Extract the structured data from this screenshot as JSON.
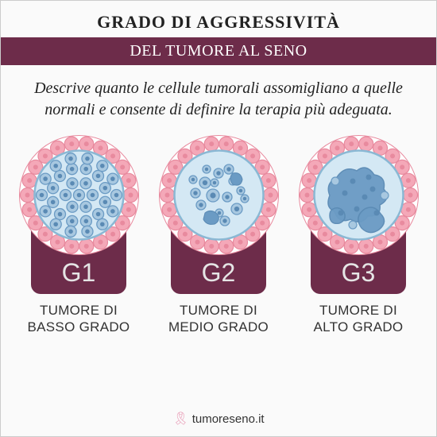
{
  "title_top": "GRADO DI AGGRESSIVITÀ",
  "title_band": "DEL TUMORE AL SENO",
  "description": "Descrive quanto le cellule tumorali assomigliano a quelle normali e consente di definire la terapia più adeguata.",
  "grades": [
    {
      "code": "G1",
      "line1": "TUMORE DI",
      "line2": "BASSO GRADO"
    },
    {
      "code": "G2",
      "line1": "TUMORE DI",
      "line2": "MEDIO GRADO"
    },
    {
      "code": "G3",
      "line1": "TUMORE DI",
      "line2": "ALTO GRADO"
    }
  ],
  "footer": "tumoreseno.it",
  "colors": {
    "band": "#6d2c4a",
    "outer_ring": "#f4a8b8",
    "outer_ring_dark": "#e88a9e",
    "membrane": "#d4e8f4",
    "membrane_border": "#8ab8d4",
    "cell_fill": "#a8c8e0",
    "cell_dark": "#6b9bc4",
    "nucleus": "#5a8ab4"
  },
  "diagram": {
    "outer_radius": 75,
    "ring_cell_radius": 9,
    "ring_cell_count": 22,
    "membrane_radius": 56,
    "g1_cell_radius": 7,
    "g2_cell_radius": 6,
    "g3_blob_scale": 1.0
  }
}
